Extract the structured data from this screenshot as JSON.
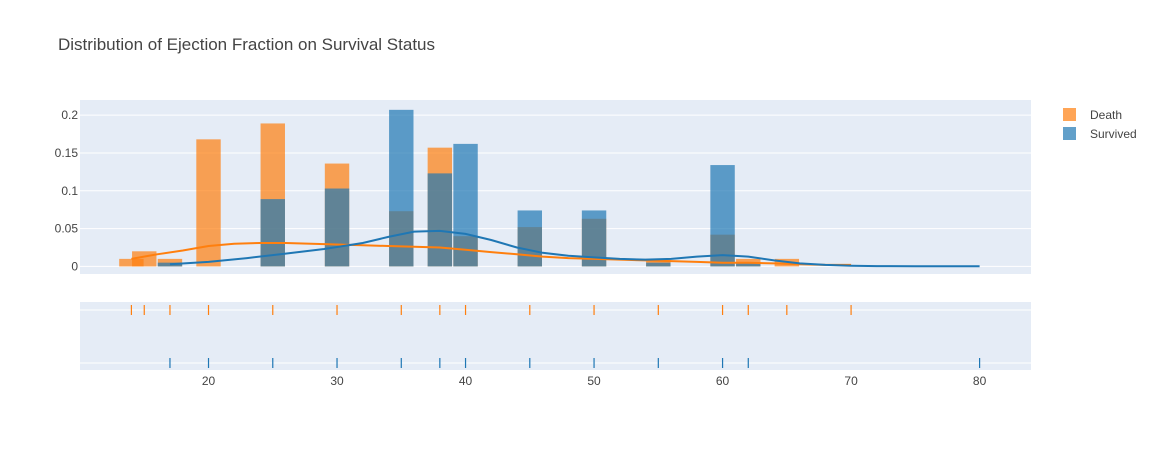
{
  "chart_data": {
    "type": "histogram",
    "title": "Distribution of Ejection Fraction on Survival Status",
    "xlabel": "",
    "ylabel": "",
    "xlim": [
      10,
      84
    ],
    "ylim": [
      -0.01,
      0.22
    ],
    "y_ticks": [
      {
        "value": 0,
        "label": "0"
      },
      {
        "value": 0.05,
        "label": "0.05"
      },
      {
        "value": 0.1,
        "label": "0.1"
      },
      {
        "value": 0.15,
        "label": "0.15"
      },
      {
        "value": 0.2,
        "label": "0.2"
      }
    ],
    "x_ticks": [
      20,
      30,
      40,
      50,
      60,
      70,
      80
    ],
    "bin_width": 1.9,
    "grid": true,
    "legend_position": "top-right",
    "series": [
      {
        "name": "Death",
        "color": "#ff7f0e",
        "bars": [
          {
            "x": 14,
            "y": 0.01
          },
          {
            "x": 15,
            "y": 0.02
          },
          {
            "x": 17,
            "y": 0.01
          },
          {
            "x": 20,
            "y": 0.168
          },
          {
            "x": 25,
            "y": 0.189
          },
          {
            "x": 30,
            "y": 0.136
          },
          {
            "x": 35,
            "y": 0.073
          },
          {
            "x": 38,
            "y": 0.157
          },
          {
            "x": 40,
            "y": 0.04
          },
          {
            "x": 45,
            "y": 0.052
          },
          {
            "x": 50,
            "y": 0.063
          },
          {
            "x": 55,
            "y": 0.01
          },
          {
            "x": 60,
            "y": 0.042
          },
          {
            "x": 62,
            "y": 0.01
          },
          {
            "x": 65,
            "y": 0.01
          }
        ],
        "curve": [
          [
            14,
            0.01
          ],
          [
            16,
            0.016
          ],
          [
            18,
            0.021
          ],
          [
            20,
            0.027
          ],
          [
            22,
            0.03
          ],
          [
            24,
            0.031
          ],
          [
            26,
            0.031
          ],
          [
            28,
            0.03
          ],
          [
            30,
            0.029
          ],
          [
            32,
            0.028
          ],
          [
            34,
            0.027
          ],
          [
            36,
            0.026
          ],
          [
            38,
            0.025
          ],
          [
            40,
            0.022
          ],
          [
            42,
            0.019
          ],
          [
            44,
            0.016
          ],
          [
            46,
            0.013
          ],
          [
            48,
            0.011
          ],
          [
            50,
            0.01
          ],
          [
            52,
            0.009
          ],
          [
            54,
            0.008
          ],
          [
            56,
            0.007
          ],
          [
            58,
            0.006
          ],
          [
            60,
            0.005
          ],
          [
            62,
            0.005
          ],
          [
            64,
            0.004
          ],
          [
            66,
            0.003
          ],
          [
            68,
            0.002
          ],
          [
            70,
            0.002
          ]
        ],
        "rug": [
          14,
          15,
          17,
          20,
          25,
          30,
          35,
          38,
          40,
          45,
          50,
          55,
          60,
          62,
          65,
          70
        ]
      },
      {
        "name": "Survived",
        "color": "#1f77b4",
        "bars": [
          {
            "x": 17,
            "y": 0.005
          },
          {
            "x": 25,
            "y": 0.089
          },
          {
            "x": 30,
            "y": 0.103
          },
          {
            "x": 35,
            "y": 0.207
          },
          {
            "x": 38,
            "y": 0.123
          },
          {
            "x": 40,
            "y": 0.162
          },
          {
            "x": 45,
            "y": 0.074
          },
          {
            "x": 50,
            "y": 0.074
          },
          {
            "x": 55,
            "y": 0.005
          },
          {
            "x": 60,
            "y": 0.134
          },
          {
            "x": 62,
            "y": 0.005
          }
        ],
        "curve": [
          [
            17,
            0.003
          ],
          [
            20,
            0.006
          ],
          [
            23,
            0.011
          ],
          [
            26,
            0.017
          ],
          [
            29,
            0.023
          ],
          [
            32,
            0.031
          ],
          [
            34,
            0.039
          ],
          [
            36,
            0.046
          ],
          [
            38,
            0.047
          ],
          [
            40,
            0.043
          ],
          [
            42,
            0.035
          ],
          [
            44,
            0.025
          ],
          [
            46,
            0.018
          ],
          [
            48,
            0.014
          ],
          [
            50,
            0.012
          ],
          [
            52,
            0.01
          ],
          [
            54,
            0.009
          ],
          [
            56,
            0.01
          ],
          [
            58,
            0.013
          ],
          [
            60,
            0.015
          ],
          [
            62,
            0.013
          ],
          [
            64,
            0.008
          ],
          [
            66,
            0.004
          ],
          [
            68,
            0.002
          ],
          [
            70,
            0.001
          ],
          [
            72,
            0.0005
          ],
          [
            75,
            0.0003
          ],
          [
            80,
            0.0003
          ]
        ],
        "rug": [
          17,
          20,
          25,
          30,
          35,
          38,
          40,
          45,
          50,
          55,
          60,
          62,
          80
        ]
      }
    ]
  }
}
